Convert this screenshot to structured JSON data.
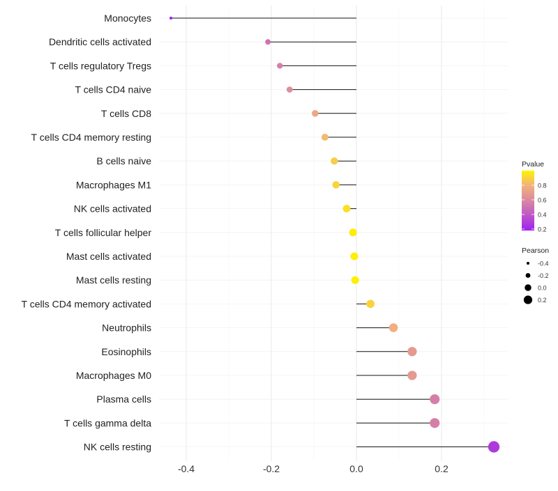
{
  "chart_data": {
    "type": "lollipop",
    "title": "",
    "xlabel": "",
    "ylabel": "",
    "xlim": [
      -0.45,
      0.34
    ],
    "x_ticks": [
      -0.4,
      -0.2,
      0.0,
      0.2
    ],
    "x_tick_labels": [
      "-0.4",
      "-0.2",
      "0.0",
      "0.2"
    ],
    "grid": true,
    "categories": [
      "Monocytes",
      "Dendritic cells activated",
      "T cells regulatory  Tregs ",
      "T cells CD4 naive",
      "T cells CD8",
      "T cells CD4 memory resting",
      "B cells naive",
      "Macrophages M1",
      "NK cells activated",
      "T cells follicular helper",
      "Mast cells activated",
      "Mast cells resting",
      "T cells CD4 memory activated",
      "Neutrophils",
      "Eosinophils",
      "Macrophages M0",
      "Plasma cells",
      "T cells gamma delta",
      "NK cells resting"
    ],
    "pearson": [
      -0.436,
      -0.208,
      -0.18,
      -0.157,
      -0.097,
      -0.074,
      -0.052,
      -0.048,
      -0.023,
      -0.008,
      -0.005,
      -0.003,
      0.033,
      0.087,
      0.131,
      0.131,
      0.184,
      0.184,
      0.323
    ],
    "pvalue": [
      0.18,
      0.5,
      0.55,
      0.62,
      0.75,
      0.82,
      0.88,
      0.9,
      0.94,
      0.98,
      0.99,
      0.99,
      0.9,
      0.78,
      0.68,
      0.68,
      0.55,
      0.55,
      0.28
    ],
    "legend_color": {
      "title": "Pvalue",
      "ticks": [
        "0.8",
        "0.6",
        "0.4",
        "0.2"
      ],
      "tick_values": [
        0.8,
        0.6,
        0.4,
        0.2
      ],
      "range": [
        0.18,
        1.0
      ],
      "low_color": "#A020F0",
      "high_color": "#FFFF00",
      "placement": "right"
    },
    "legend_size": {
      "title": "Pearson",
      "ticks": [
        "-0.4",
        "-0.2",
        "0.0",
        "0.2"
      ],
      "tick_values": [
        -0.4,
        -0.2,
        0.0,
        0.2
      ],
      "placement": "right"
    }
  }
}
